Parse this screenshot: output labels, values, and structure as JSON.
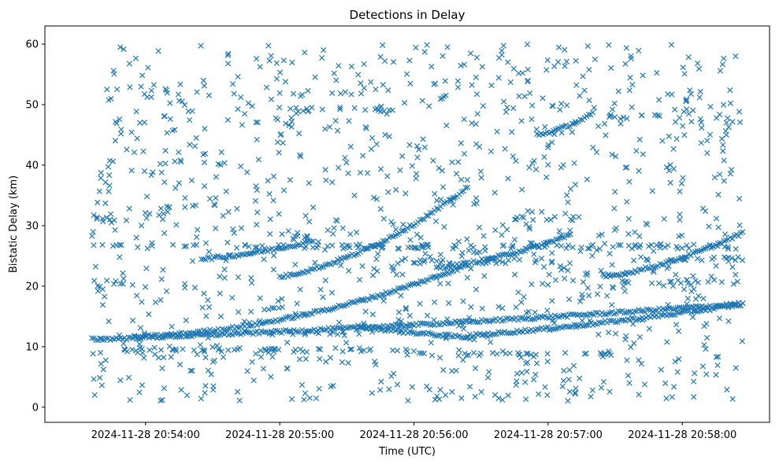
{
  "chart_data": {
    "type": "scatter",
    "title": "Detections in Delay",
    "xlabel": "Time (UTC)",
    "ylabel": "Bistatic Delay (km)",
    "marker": "x",
    "color": "#1f77b4",
    "grid": false,
    "xlim": [
      "2024-11-28 20:53:15",
      "2024-11-28 20:58:39"
    ],
    "ylim": [
      -2.5,
      63
    ],
    "x_ticks": [
      "2024-11-28 20:54:00",
      "2024-11-28 20:55:00",
      "2024-11-28 20:56:00",
      "2024-11-28 20:57:00",
      "2024-11-28 20:58:00"
    ],
    "y_ticks": [
      0,
      10,
      20,
      30,
      40,
      50,
      60
    ],
    "time_range": [
      "2024-11-28 20:53:36",
      "2024-11-28 20:58:27"
    ],
    "tracks": [
      {
        "from": [
          "2024-11-28 20:53:36",
          11.2
        ],
        "to": [
          "2024-11-28 20:58:27",
          17.1
        ],
        "shape": "rising",
        "curve": 0.35
      },
      {
        "from": [
          "2024-11-28 20:53:55",
          11.6
        ],
        "to": [
          "2024-11-28 20:56:24",
          23.5
        ],
        "shape": "rising",
        "curve": 0.8
      },
      {
        "from": [
          "2024-11-28 20:55:00",
          21.5
        ],
        "to": [
          "2024-11-28 20:56:24",
          36.3
        ],
        "shape": "rising",
        "curve": 0.6
      },
      {
        "from": [
          "2024-11-28 20:56:10",
          23.0
        ],
        "to": [
          "2024-11-28 20:57:10",
          28.5
        ],
        "shape": "rising",
        "curve": 0.5
      },
      {
        "from": [
          "2024-11-28 20:56:55",
          45.0
        ],
        "to": [
          "2024-11-28 20:57:20",
          48.5
        ],
        "shape": "rising",
        "curve": 0.5
      },
      {
        "from": [
          "2024-11-28 20:57:25",
          21.5
        ],
        "to": [
          "2024-11-28 20:58:27",
          28.8
        ],
        "shape": "rising",
        "curve": 0.5
      },
      {
        "from": [
          "2024-11-28 20:56:24",
          11.8
        ],
        "to": [
          "2024-11-28 20:58:27",
          17.0
        ],
        "shape": "rising",
        "curve": 0.3
      },
      {
        "from": [
          "2024-11-28 20:55:35",
          13.5
        ],
        "to": [
          "2024-11-28 20:56:25",
          11.5
        ],
        "shape": "falling",
        "curve": 0.5
      },
      {
        "from": [
          "2024-11-28 20:54:25",
          24.5
        ],
        "to": [
          "2024-11-28 20:55:15",
          27.5
        ],
        "shape": "rising",
        "curve": 0.5
      }
    ],
    "bands": [
      {
        "y": 49.2,
        "from": "2024-11-28 20:55:05",
        "to": "2024-11-28 20:55:55"
      },
      {
        "y": 26.5,
        "from": "2024-11-28 20:53:36",
        "to": "2024-11-28 20:58:27"
      },
      {
        "y": 20.7,
        "from": "2024-11-28 20:53:36",
        "to": "2024-11-28 20:53:50"
      },
      {
        "y": 31.2,
        "from": "2024-11-28 20:53:36",
        "to": "2024-11-28 20:53:50"
      },
      {
        "y": 31.2,
        "from": "2024-11-28 20:56:45",
        "to": "2024-11-28 20:57:15"
      },
      {
        "y": 12.2,
        "from": "2024-11-28 20:54:50",
        "to": "2024-11-28 20:55:30"
      },
      {
        "y": 9.5,
        "from": "2024-11-28 20:53:50",
        "to": "2024-11-28 20:56:00"
      },
      {
        "y": 8.7,
        "from": "2024-11-28 20:56:00",
        "to": "2024-11-28 20:57:30"
      },
      {
        "y": 24.0,
        "from": "2024-11-28 20:55:50",
        "to": "2024-11-28 20:57:10"
      },
      {
        "y": 20.8,
        "from": "2024-11-28 20:57:25",
        "to": "2024-11-28 20:58:27"
      },
      {
        "y": 24.5,
        "from": "2024-11-28 20:57:40",
        "to": "2024-11-28 20:58:27"
      },
      {
        "y": 48.0,
        "from": "2024-11-28 20:57:25",
        "to": "2024-11-28 20:57:50"
      },
      {
        "y": 28.0,
        "from": "2024-11-28 20:55:00",
        "to": "2024-11-28 20:55:20"
      }
    ],
    "noise_points": 1100
  }
}
